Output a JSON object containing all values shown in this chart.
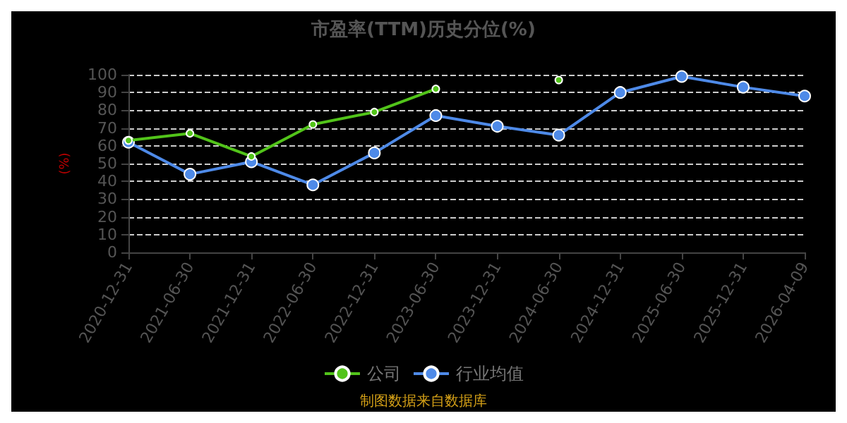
{
  "chart_data": {
    "type": "line",
    "title": "市盈率(TTM)历史分位(%)",
    "ylabel": "(%)",
    "categories": [
      "2020-12-31",
      "2021-06-30",
      "2021-12-31",
      "2022-06-30",
      "2022-12-31",
      "2023-06-30",
      "2023-12-31",
      "2024-06-30",
      "2024-12-31",
      "2025-06-30",
      "2025-12-31",
      "2026-04-09"
    ],
    "series": [
      {
        "name": "公司",
        "color": "#52c41a",
        "values": [
          63,
          67,
          54,
          72,
          79,
          92,
          null,
          97,
          null,
          null,
          null,
          null
        ]
      },
      {
        "name": "行业均值",
        "color": "#4e8ae8",
        "values": [
          62,
          44,
          51,
          38,
          56,
          77,
          71,
          66,
          90,
          99,
          93,
          88
        ]
      }
    ],
    "ylim": [
      0,
      100
    ],
    "yticks": [
      0,
      10,
      20,
      30,
      40,
      50,
      60,
      70,
      80,
      90,
      100
    ],
    "grid": "y",
    "legend": "bottom",
    "marker": "circle",
    "line_style": "solid",
    "annotations": [
      "制图数据来自数据库"
    ]
  }
}
